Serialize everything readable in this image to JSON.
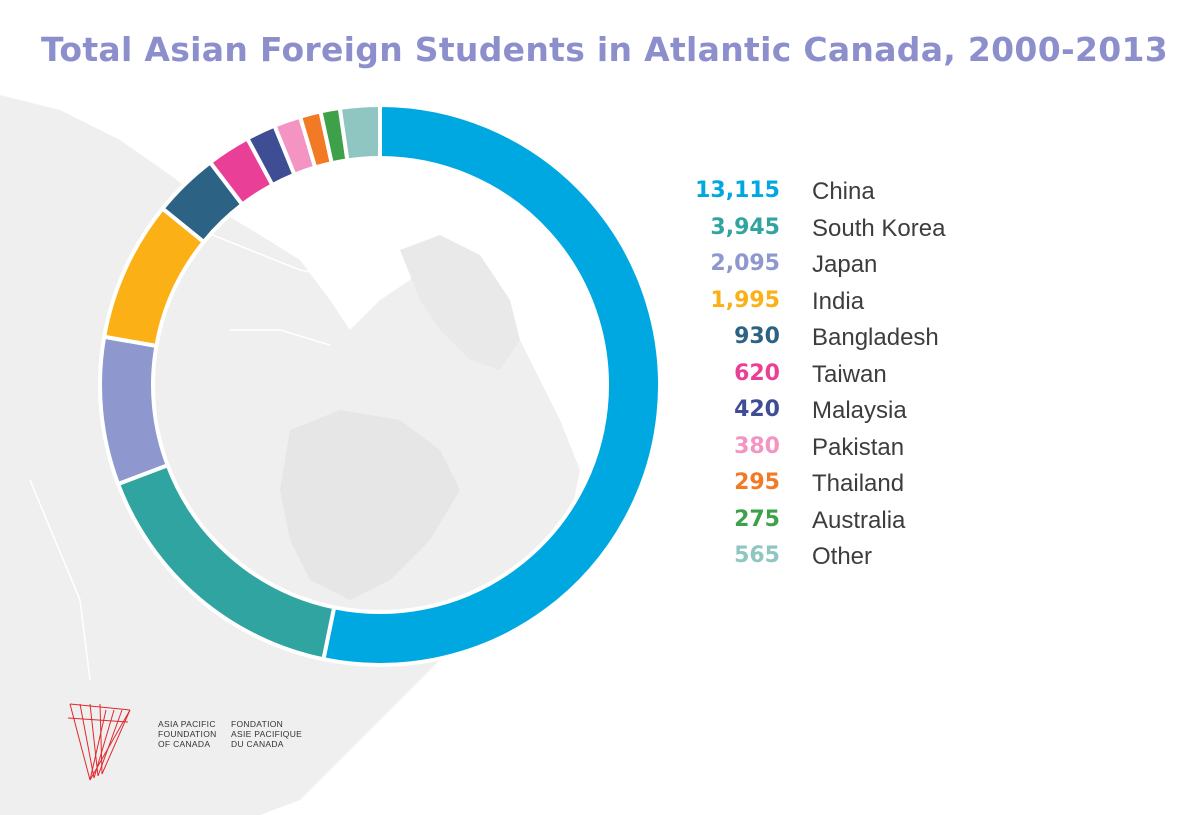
{
  "title": "Total Asian Foreign Students in Atlantic Canada, 2000-2013",
  "chart_data": {
    "type": "pie",
    "title": "Total Asian Foreign Students in Atlantic Canada, 2000-2013",
    "categories": [
      "China",
      "South Korea",
      "Japan",
      "India",
      "Bangladesh",
      "Taiwan",
      "Malaysia",
      "Pakistan",
      "Thailand",
      "Australia",
      "Other"
    ],
    "values": [
      13115,
      3945,
      2095,
      1995,
      930,
      620,
      420,
      380,
      295,
      275,
      565
    ],
    "value_labels": [
      "13,115",
      "3,945",
      "2,095",
      "1,995",
      "930",
      "620",
      "420",
      "380",
      "295",
      "275",
      "565"
    ],
    "colors": [
      "#00a8e1",
      "#2fa4a0",
      "#8e98cf",
      "#fbb016",
      "#2c6384",
      "#ea3f96",
      "#3f4d95",
      "#f494c3",
      "#f37a25",
      "#3ea049",
      "#8fc6c2"
    ],
    "style": "donut",
    "legend_position": "right"
  },
  "logo": {
    "english": [
      "ASIA PACIFIC",
      "FOUNDATION",
      "OF CANADA"
    ],
    "french": [
      "FONDATION",
      "ASIE PACIFIQUE",
      "DU CANADA"
    ]
  }
}
